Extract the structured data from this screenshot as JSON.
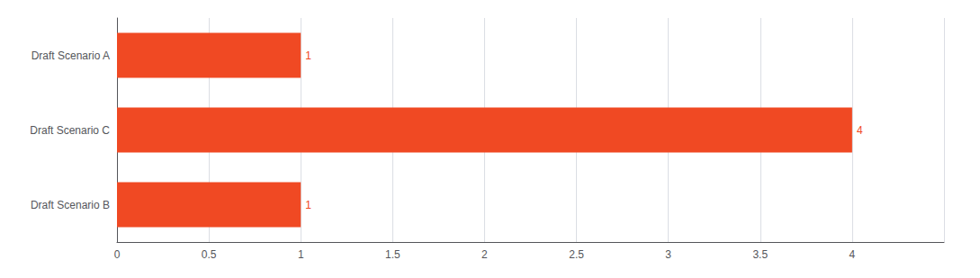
{
  "chart_data": {
    "type": "bar",
    "orientation": "horizontal",
    "categories": [
      "Draft Scenario B",
      "Draft Scenario C",
      "Draft Scenario A"
    ],
    "values": [
      1,
      4,
      1
    ],
    "color": "#f04923",
    "xlim": [
      0,
      4.5
    ],
    "xticks": [
      0,
      0.5,
      1.0,
      1.5,
      2.0,
      2.5,
      3.0,
      3.5,
      4.0
    ],
    "grid": true,
    "data_labels": true
  }
}
